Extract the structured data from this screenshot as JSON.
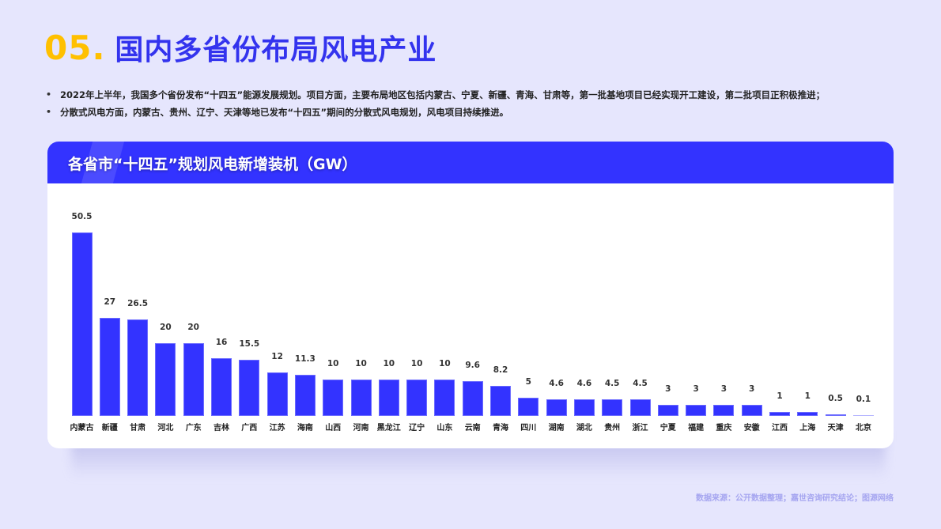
{
  "page": {
    "section_number": "05.",
    "title": "国内多省份布局风电产业",
    "bullets": [
      "2022年上半年，我国多个省份发布“十四五”能源发展规划。项目方面，主要布局地区包括内蒙古、宁夏、新疆、青海、甘肃等，第一批基地项目已经实现开工建设，第二批项目正积极推进；",
      "分散式风电方面，内蒙古、贵州、辽宁、天津等地已发布“十四五”期间的分散式风电规划，风电项目持续推进。"
    ],
    "source": "数据来源：公开数据整理；嘉世咨询研究结论；图源网络"
  },
  "card": {
    "header": "各省市“十四五”规划风电新增装机（GW）"
  },
  "colors": {
    "background": "#e6e6fd",
    "accent_yellow": "#ffc000",
    "accent_blue": "#3333ff",
    "bar": "#3333ff"
  },
  "chart_data": {
    "type": "bar",
    "title": "各省市“十四五”规划风电新增装机（GW）",
    "xlabel": "",
    "ylabel": "GW",
    "ylim": [
      0,
      50.5
    ],
    "grid": false,
    "legend": null,
    "categories": [
      "内蒙古",
      "新疆",
      "甘肃",
      "河北",
      "广东",
      "吉林",
      "广西",
      "江苏",
      "海南",
      "山西",
      "河南",
      "黑龙江",
      "辽宁",
      "山东",
      "云南",
      "青海",
      "四川",
      "湖南",
      "湖北",
      "贵州",
      "浙江",
      "宁夏",
      "福建",
      "重庆",
      "安徽",
      "江西",
      "上海",
      "天津",
      "北京"
    ],
    "values": [
      50.5,
      27,
      26.5,
      20,
      20,
      16,
      15.5,
      12,
      11.3,
      10,
      10,
      10,
      10,
      10,
      9.6,
      8.2,
      5,
      4.6,
      4.6,
      4.5,
      4.5,
      3,
      3,
      3,
      3,
      1,
      1,
      0.5,
      0.1
    ],
    "value_labels": [
      "50.5",
      "27",
      "26.5",
      "20",
      "20",
      "16",
      "15.5",
      "12",
      "11.3",
      "10",
      "10",
      "10",
      "10",
      "10",
      "9.6",
      "8.2",
      "5",
      "4.6",
      "4.6",
      "4.5",
      "4.5",
      "3",
      "3",
      "3",
      "3",
      "1",
      "1",
      "0.5",
      "0.1"
    ]
  }
}
